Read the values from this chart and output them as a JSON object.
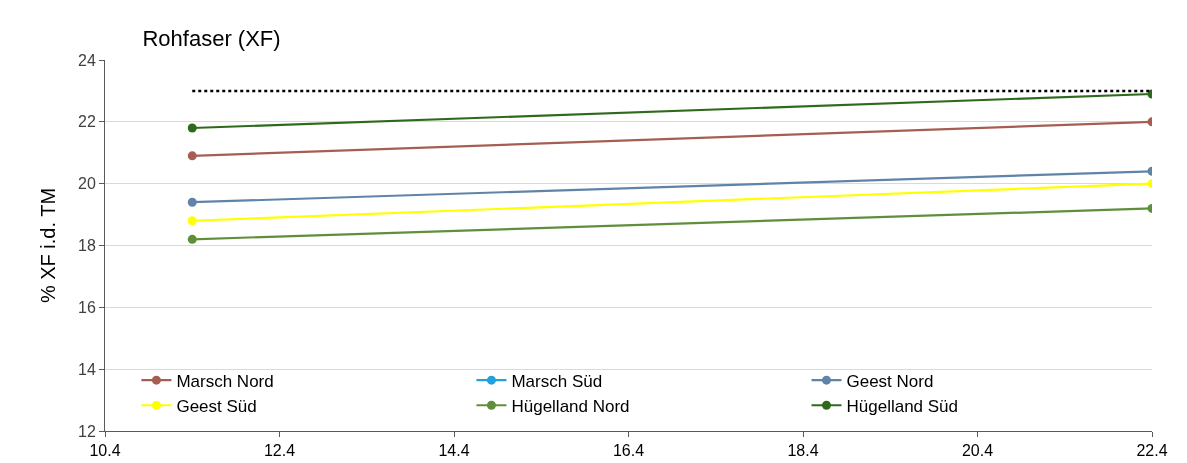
{
  "chart_data": {
    "type": "line",
    "title": "Rohfaser (XF)",
    "ylabel": "% XF i.d. TM",
    "x": [
      11.4,
      22.4
    ],
    "series": [
      {
        "name": "Marsch Nord",
        "color": "#a65e52",
        "values": [
          20.9,
          22.0
        ]
      },
      {
        "name": "Marsch Süd",
        "color": "#1fa2de",
        "values": [
          null,
          null
        ]
      },
      {
        "name": "Geest Nord",
        "color": "#5f84a8",
        "values": [
          19.4,
          20.4
        ]
      },
      {
        "name": "Geest Süd",
        "color": "#ffff00",
        "values": [
          18.8,
          20.0
        ]
      },
      {
        "name": "Hügelland Nord",
        "color": "#5f8f3a",
        "values": [
          18.2,
          19.2
        ]
      },
      {
        "name": "Hügelland Süd",
        "color": "#2e6a1c",
        "values": [
          21.8,
          22.9
        ]
      },
      {
        "color": "#000000",
        "values": [
          23,
          23
        ],
        "line_style": "dotted",
        "marker": "none"
      }
    ],
    "xlim": [
      10.4,
      22.4
    ],
    "xticks": [
      10.4,
      12.4,
      14.4,
      16.4,
      18.4,
      20.4,
      22.4
    ],
    "ylim": [
      12,
      24
    ],
    "yticks": [
      12,
      14,
      16,
      18,
      20,
      22,
      24
    ],
    "grid": "y",
    "legend": "bottom",
    "marker": "circle",
    "line_style": "solid"
  }
}
